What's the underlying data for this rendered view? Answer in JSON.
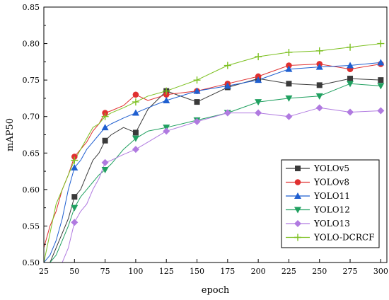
{
  "chart_data": {
    "type": "line",
    "xlabel": "epoch",
    "ylabel": "mAP50",
    "xlim": [
      25,
      305
    ],
    "ylim": [
      0.5,
      0.85
    ],
    "xticks": [
      25,
      50,
      75,
      100,
      125,
      150,
      175,
      200,
      225,
      250,
      275,
      300
    ],
    "yticks": [
      0.5,
      0.55,
      0.6,
      0.65,
      0.7,
      0.75,
      0.8,
      0.85
    ],
    "grid": false,
    "legend_position": "bottom-right",
    "series": [
      {
        "name": "YOLOv5",
        "color": "#3a3a3a",
        "marker": "square",
        "x": [
          25,
          30,
          35,
          40,
          45,
          50,
          55,
          60,
          65,
          70,
          75,
          80,
          90,
          100,
          110,
          125,
          150,
          175,
          200,
          225,
          250,
          275,
          300
        ],
        "y": [
          0.5,
          0.5,
          0.52,
          0.54,
          0.56,
          0.59,
          0.6,
          0.62,
          0.64,
          0.65,
          0.667,
          0.675,
          0.685,
          0.678,
          0.71,
          0.735,
          0.72,
          0.74,
          0.752,
          0.745,
          0.743,
          0.752,
          0.75
        ]
      },
      {
        "name": "YOLOv8",
        "color": "#e03030",
        "marker": "circle",
        "x": [
          25,
          30,
          35,
          40,
          45,
          50,
          55,
          60,
          65,
          70,
          75,
          80,
          90,
          100,
          110,
          125,
          150,
          175,
          200,
          225,
          250,
          275,
          300
        ],
        "y": [
          0.52,
          0.55,
          0.57,
          0.6,
          0.62,
          0.645,
          0.655,
          0.665,
          0.68,
          0.69,
          0.705,
          0.708,
          0.715,
          0.73,
          0.722,
          0.73,
          0.735,
          0.745,
          0.755,
          0.77,
          0.772,
          0.765,
          0.772
        ]
      },
      {
        "name": "YOLO11",
        "color": "#1f5fd0",
        "marker": "triangle-up",
        "x": [
          25,
          30,
          35,
          40,
          45,
          50,
          55,
          60,
          65,
          70,
          75,
          80,
          90,
          100,
          110,
          125,
          150,
          175,
          200,
          225,
          250,
          275,
          300
        ],
        "y": [
          0.5,
          0.51,
          0.53,
          0.56,
          0.6,
          0.63,
          0.64,
          0.655,
          0.665,
          0.675,
          0.685,
          0.69,
          0.698,
          0.705,
          0.712,
          0.722,
          0.735,
          0.742,
          0.75,
          0.765,
          0.768,
          0.77,
          0.774
        ]
      },
      {
        "name": "YOLO12",
        "color": "#20a060",
        "marker": "triangle-down",
        "x": [
          25,
          30,
          35,
          40,
          45,
          50,
          55,
          60,
          65,
          70,
          75,
          80,
          90,
          100,
          110,
          125,
          150,
          175,
          200,
          225,
          250,
          275,
          300
        ],
        "y": [
          0.5,
          0.5,
          0.51,
          0.53,
          0.55,
          0.575,
          0.59,
          0.6,
          0.61,
          0.62,
          0.627,
          0.635,
          0.655,
          0.67,
          0.68,
          0.685,
          0.695,
          0.705,
          0.72,
          0.725,
          0.728,
          0.745,
          0.742
        ]
      },
      {
        "name": "YOLO13",
        "color": "#b07ae0",
        "marker": "diamond",
        "x": [
          25,
          30,
          35,
          40,
          45,
          50,
          55,
          60,
          65,
          70,
          75,
          80,
          90,
          100,
          110,
          125,
          150,
          175,
          200,
          225,
          250,
          275,
          300
        ],
        "y": [
          0.5,
          0.5,
          0.5,
          0.5,
          0.52,
          0.555,
          0.57,
          0.58,
          0.6,
          0.615,
          0.637,
          0.64,
          0.648,
          0.655,
          0.665,
          0.68,
          0.693,
          0.705,
          0.705,
          0.7,
          0.712,
          0.706,
          0.708
        ]
      },
      {
        "name": "YOLO-DCRCF",
        "color": "#7cc020",
        "marker": "plus",
        "x": [
          25,
          30,
          35,
          40,
          45,
          50,
          55,
          60,
          65,
          70,
          75,
          80,
          90,
          100,
          110,
          125,
          150,
          175,
          200,
          225,
          250,
          275,
          300
        ],
        "y": [
          0.5,
          0.54,
          0.58,
          0.6,
          0.62,
          0.64,
          0.655,
          0.67,
          0.685,
          0.69,
          0.7,
          0.705,
          0.712,
          0.72,
          0.728,
          0.735,
          0.75,
          0.77,
          0.782,
          0.788,
          0.79,
          0.795,
          0.8
        ]
      }
    ]
  }
}
